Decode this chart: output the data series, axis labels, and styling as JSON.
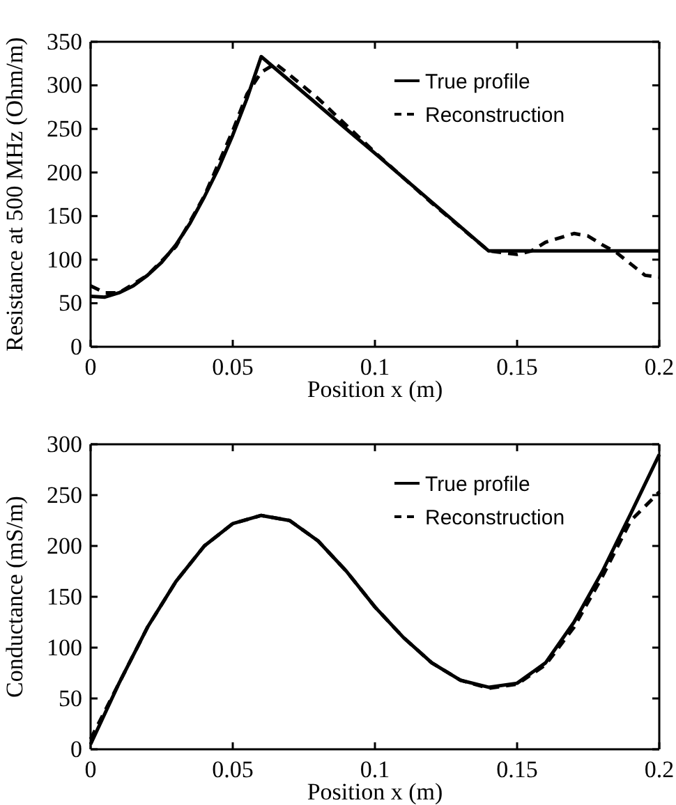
{
  "chart_data": [
    {
      "type": "line",
      "xlabel": "Position x (m)",
      "ylabel": "Resistance at 500 MHz (Ohm/m)",
      "xlim": [
        0,
        0.2
      ],
      "xticks": [
        0,
        0.05,
        0.1,
        0.15,
        0.2
      ],
      "ylim": [
        0,
        350
      ],
      "yticks": [
        0,
        50,
        100,
        150,
        200,
        250,
        300,
        350
      ],
      "legend": "top right",
      "grid": false,
      "marker": "none",
      "series": [
        {
          "name": "True profile",
          "color": "#000000",
          "line_style": "solid",
          "x": [
            0,
            0.005,
            0.01,
            0.015,
            0.02,
            0.025,
            0.03,
            0.035,
            0.04,
            0.045,
            0.05,
            0.055,
            0.06,
            0.1,
            0.14,
            0.2
          ],
          "values": [
            58,
            57,
            62,
            70,
            82,
            97,
            117,
            142,
            172,
            205,
            243,
            285,
            333,
            222,
            110,
            110
          ]
        },
        {
          "name": "Reconstruction",
          "color": "#000000",
          "line_style": "dashed",
          "x": [
            0,
            0.005,
            0.01,
            0.02,
            0.03,
            0.04,
            0.05,
            0.055,
            0.06,
            0.065,
            0.07,
            0.08,
            0.1,
            0.12,
            0.14,
            0.15,
            0.155,
            0.16,
            0.17,
            0.175,
            0.18,
            0.185,
            0.19,
            0.195,
            0.2
          ],
          "values": [
            70,
            62,
            62,
            82,
            115,
            173,
            248,
            290,
            315,
            325,
            312,
            285,
            223,
            165,
            110,
            106,
            110,
            120,
            130,
            127,
            117,
            108,
            95,
            82,
            80
          ]
        }
      ]
    },
    {
      "type": "line",
      "xlabel": "Position x (m)",
      "ylabel": "Conductance (mS/m)",
      "xlim": [
        0,
        0.2
      ],
      "xticks": [
        0,
        0.05,
        0.1,
        0.15,
        0.2
      ],
      "ylim": [
        0,
        300
      ],
      "yticks": [
        0,
        50,
        100,
        150,
        200,
        250,
        300
      ],
      "legend": "top right",
      "grid": false,
      "marker": "none",
      "series": [
        {
          "name": "True profile",
          "color": "#000000",
          "line_style": "solid",
          "x": [
            0,
            0.01,
            0.02,
            0.03,
            0.04,
            0.05,
            0.06,
            0.07,
            0.08,
            0.09,
            0.1,
            0.11,
            0.12,
            0.13,
            0.14,
            0.15,
            0.16,
            0.17,
            0.18,
            0.19,
            0.2
          ],
          "values": [
            5,
            65,
            120,
            165,
            200,
            222,
            230,
            225,
            205,
            175,
            140,
            110,
            85,
            68,
            61,
            65,
            85,
            125,
            175,
            232,
            290
          ]
        },
        {
          "name": "Reconstruction",
          "color": "#000000",
          "line_style": "dashed",
          "x": [
            0,
            0.01,
            0.02,
            0.03,
            0.04,
            0.05,
            0.06,
            0.07,
            0.08,
            0.09,
            0.1,
            0.11,
            0.12,
            0.13,
            0.14,
            0.15,
            0.16,
            0.17,
            0.18,
            0.19,
            0.2
          ],
          "values": [
            10,
            65,
            120,
            165,
            200,
            222,
            230,
            225,
            205,
            175,
            140,
            110,
            85,
            68,
            60,
            64,
            83,
            120,
            170,
            225,
            253
          ]
        }
      ]
    }
  ]
}
